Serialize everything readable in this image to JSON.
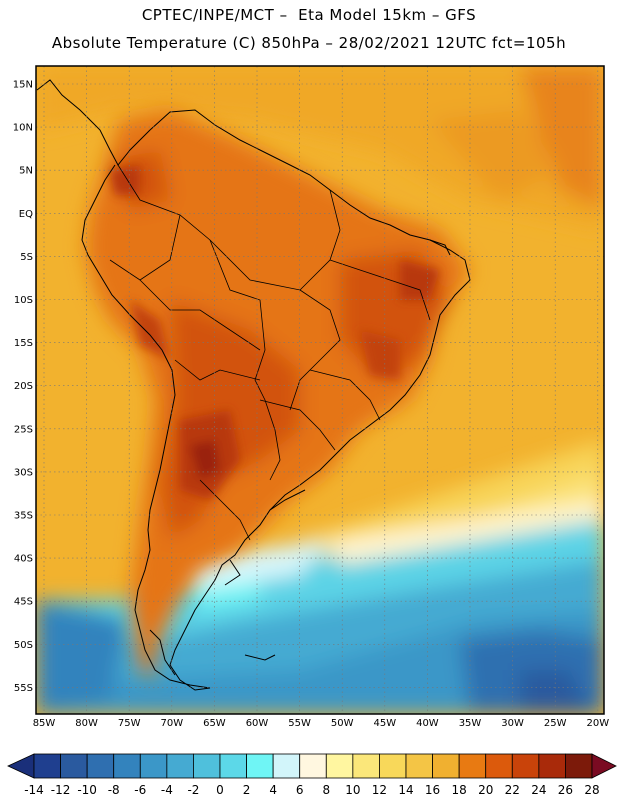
{
  "header": {
    "title_line1": "CPTEC/INPE/MCT –  Eta Model 15km – GFS",
    "title_line2": "Absolute Temperature (C) 850hPa – 28/02/2021 12UTC fct=105h"
  },
  "map": {
    "lat_labels": [
      "15N",
      "10N",
      "5N",
      "EQ",
      "5S",
      "10S",
      "15S",
      "20S",
      "25S",
      "30S",
      "35S",
      "40S",
      "45S",
      "50S",
      "55S"
    ],
    "lon_labels": [
      "85W",
      "80W",
      "75W",
      "70W",
      "65W",
      "60W",
      "55W",
      "50W",
      "45W",
      "40W",
      "35W",
      "30W",
      "25W",
      "20W"
    ],
    "gridlines": "dotted"
  },
  "colorbar": {
    "tick_labels": [
      "-14",
      "-12",
      "-10",
      "-8",
      "-6",
      "-4",
      "-2",
      "0",
      "2",
      "4",
      "6",
      "8",
      "10",
      "12",
      "14",
      "16",
      "18",
      "20",
      "22",
      "24",
      "26",
      "28"
    ],
    "colors": [
      "#1f3f8f",
      "#2a5a9f",
      "#2f6fb0",
      "#3383bd",
      "#3b97c8",
      "#45aad2",
      "#4fc0dc",
      "#5cd8e8",
      "#6ff5f5",
      "#d2f5fa",
      "#fff7e0",
      "#fff6a0",
      "#fbe77a",
      "#f8d85a",
      "#f4c545",
      "#f0b030",
      "#e87a12",
      "#dc5a0c",
      "#c9430a",
      "#a92a0a",
      "#7c1a0a"
    ],
    "left_arrow_color": "#1a2f7a",
    "right_arrow_color": "#7a0b22"
  }
}
